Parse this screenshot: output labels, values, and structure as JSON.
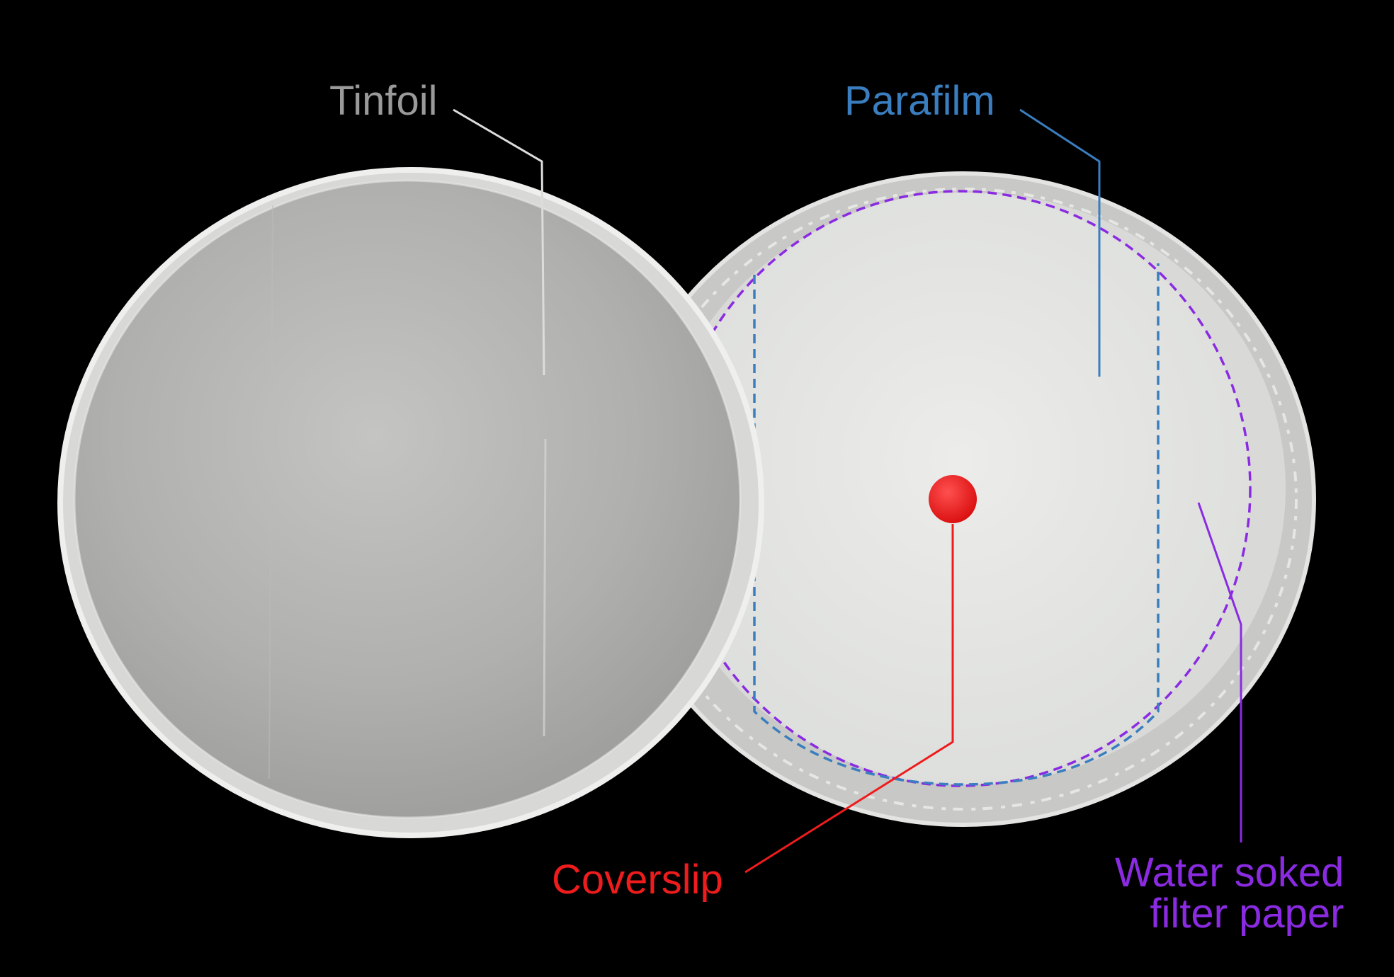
{
  "labels": {
    "tinfoil": "Tinfoil",
    "parafilm": "Parafilm",
    "coverslip": "Coverslip",
    "water_line1": "Water soked",
    "water_line2": "filter paper"
  },
  "colors": {
    "background": "#000000",
    "tinfoil": "#9a9a9a",
    "parafilm": "#3a7ebf",
    "coverslip": "#ee1c1c",
    "filter_paper": "#8a2be2",
    "foil_surface": "#b6b6b4",
    "paper_surface": "#e6e8e6"
  },
  "icons": {
    "left_dish": "foil-covered-dish-lid",
    "right_dish": "foil-lined-dish-base",
    "coverslip": "red-dot-marker"
  }
}
